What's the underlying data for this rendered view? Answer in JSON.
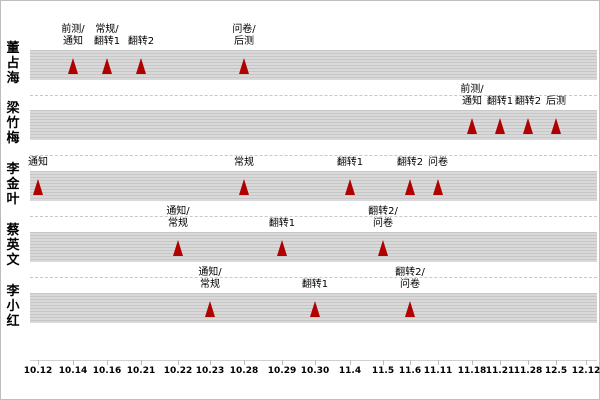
{
  "people": [
    {
      "name": "董占海",
      "events": [
        {
          "tick": 1,
          "label": "前测/\n通知"
        },
        {
          "tick": 2,
          "label": "常规/\n翻转1"
        },
        {
          "tick": 3,
          "label": "翻转2"
        },
        {
          "tick": 6,
          "label": "问卷/\n后测"
        }
      ]
    },
    {
      "name": "梁竹梅",
      "events": [
        {
          "tick": 13,
          "label": "前测/\n通知"
        },
        {
          "tick": 14,
          "label": "翻转1"
        },
        {
          "tick": 15,
          "label": "翻转2"
        },
        {
          "tick": 16,
          "label": "后测"
        }
      ]
    },
    {
      "name": "李金叶",
      "events": [
        {
          "tick": 0,
          "label": "通知"
        },
        {
          "tick": 6,
          "label": "常规"
        },
        {
          "tick": 9,
          "label": "翻转1"
        },
        {
          "tick": 11,
          "label": "翻转2"
        },
        {
          "tick": 12,
          "label": "问卷"
        }
      ]
    },
    {
      "name": "蔡英文",
      "events": [
        {
          "tick": 4,
          "label": "通知/\n常规"
        },
        {
          "tick": 7,
          "label": "翻转1"
        },
        {
          "tick": 10,
          "label": "翻转2/\n问卷"
        }
      ]
    },
    {
      "name": "李小红",
      "events": [
        {
          "tick": 5,
          "label": "通知/\n常规"
        },
        {
          "tick": 8,
          "label": "翻转1"
        },
        {
          "tick": 11,
          "label": "翻转2/\n问卷"
        }
      ]
    }
  ],
  "axis_ticks": [
    "10.12",
    "10.14",
    "10.16",
    "10.21",
    "10.22",
    "10.23",
    "10.28",
    "10.29",
    "10.30",
    "11.4",
    "11.5",
    "11.6",
    "11.11",
    "11.18",
    "11.21",
    "11.28",
    "12.5",
    "12.12"
  ],
  "colors": {
    "marker": "#b00000",
    "track": "#d9d9d9"
  }
}
